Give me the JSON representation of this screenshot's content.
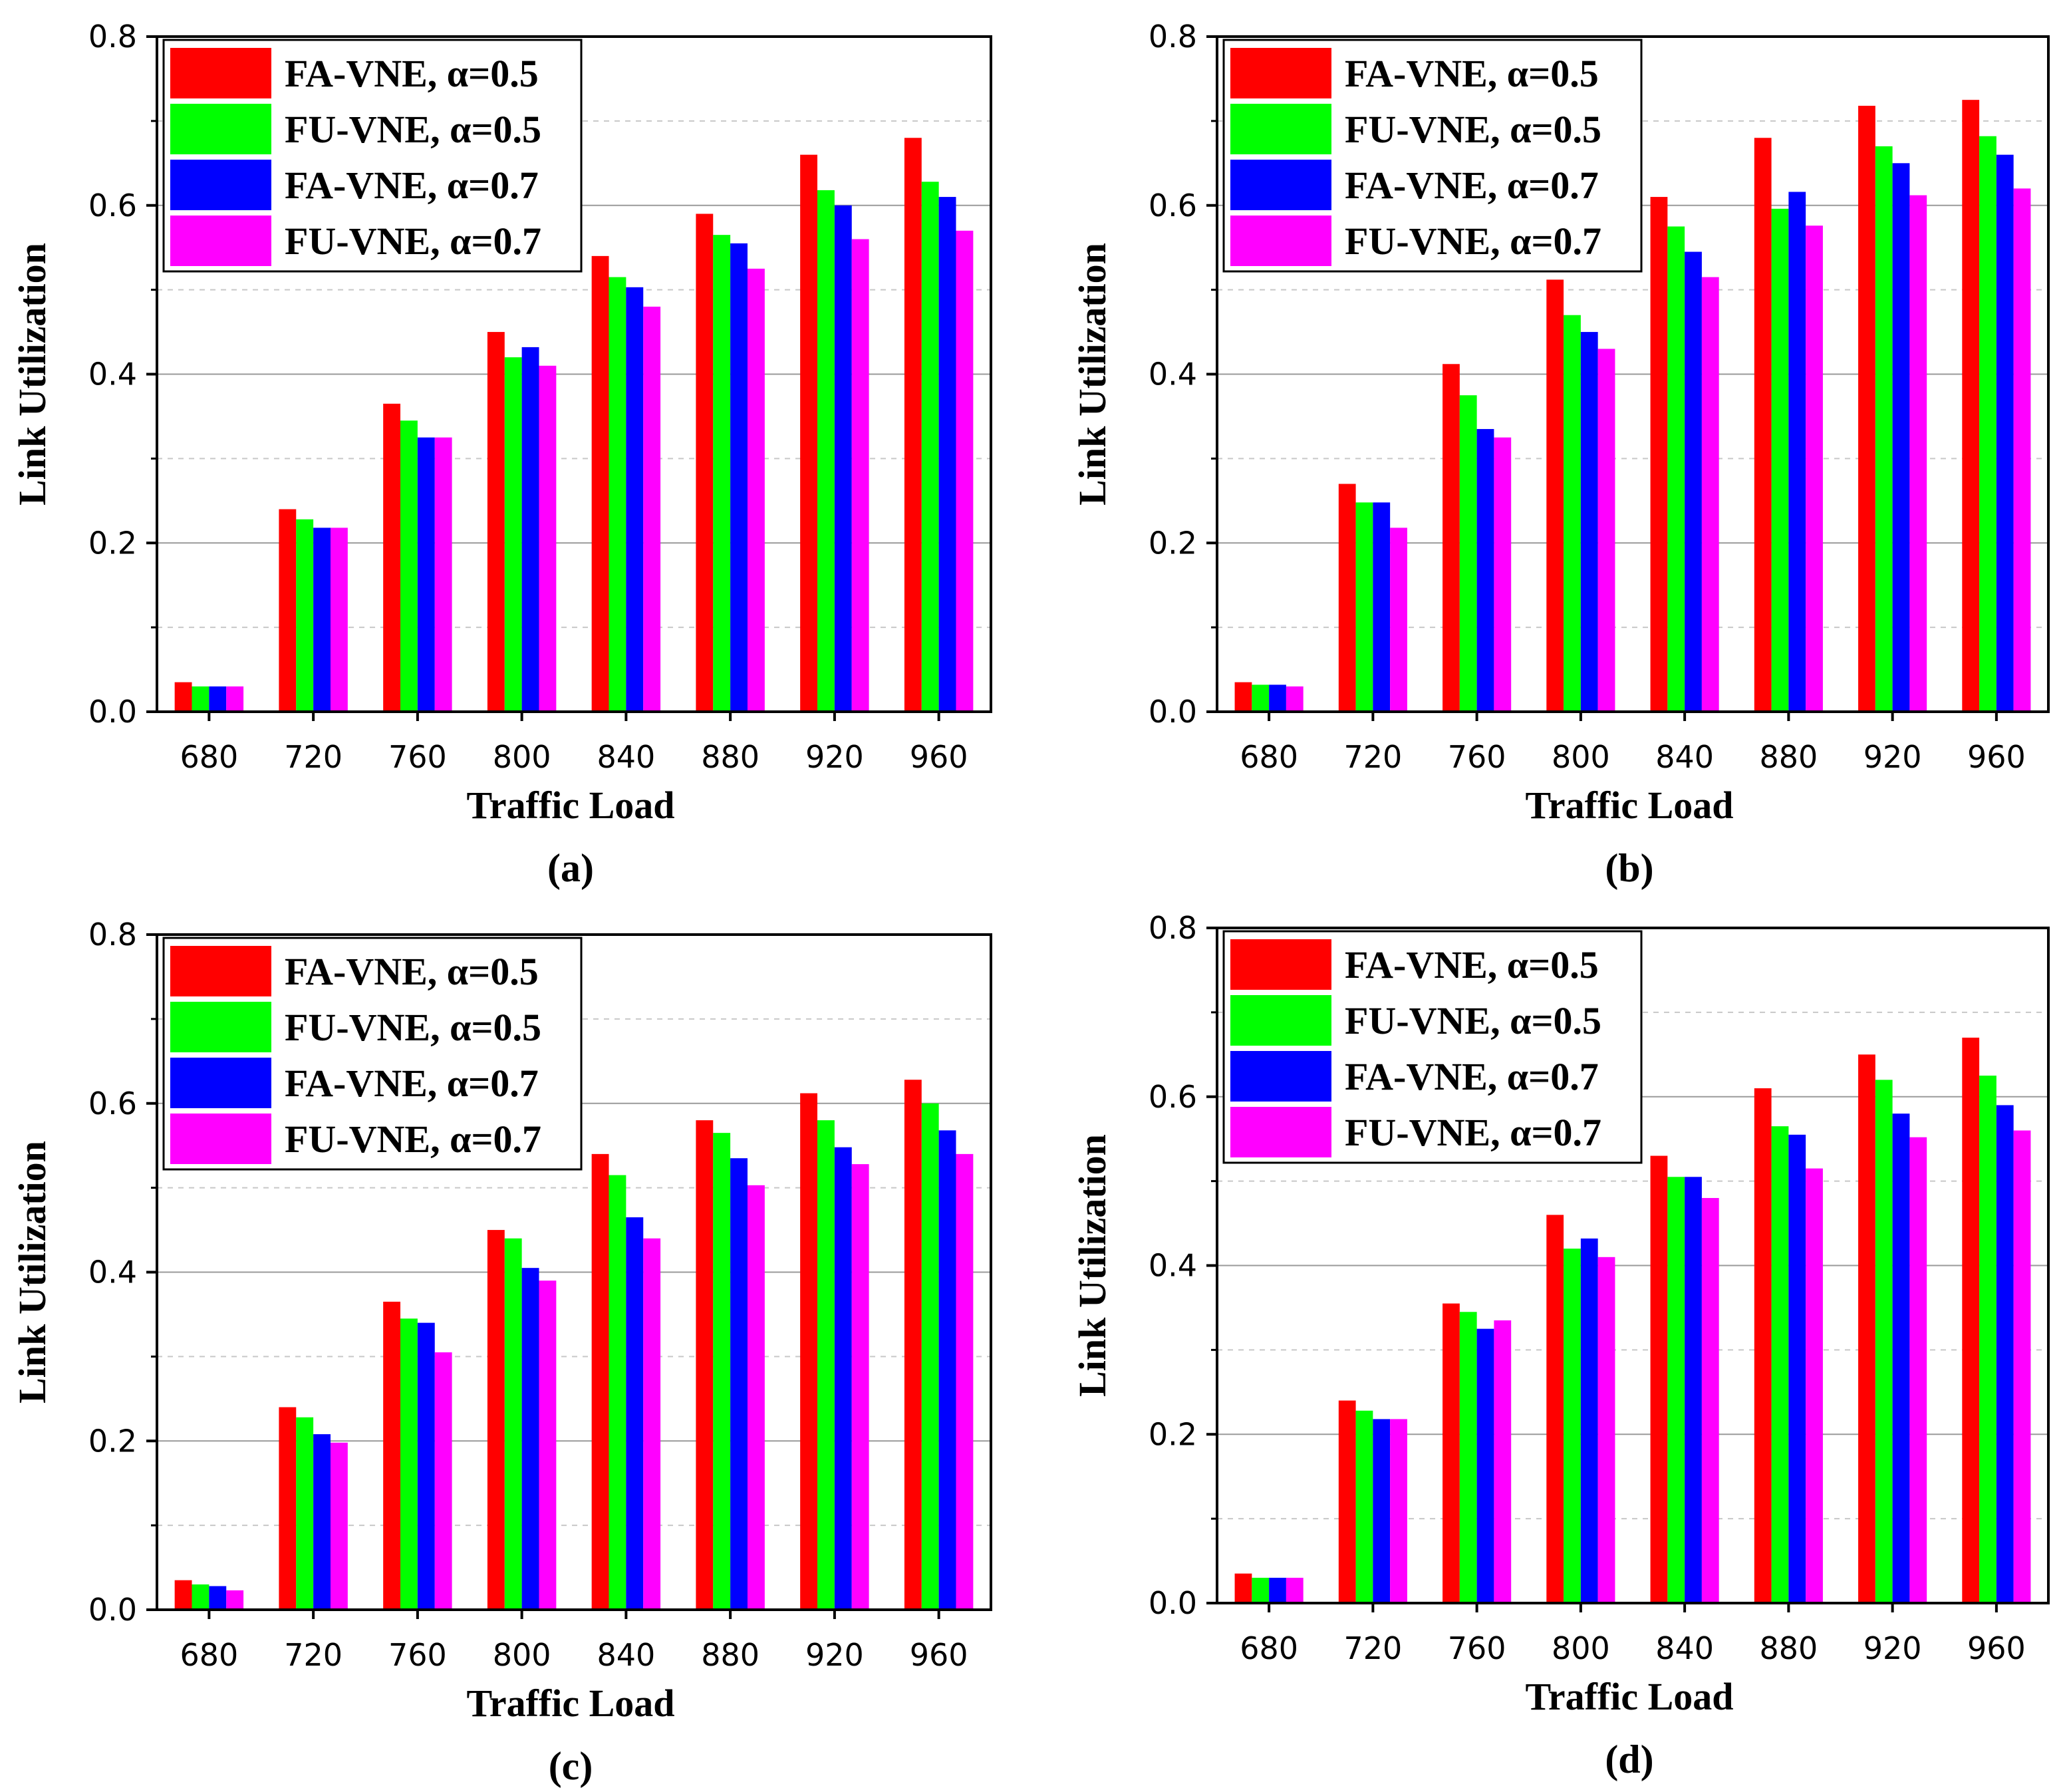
{
  "chart_data": [
    {
      "type": "bar",
      "panel_label": "(a)",
      "xlabel": "Traffic Load",
      "ylabel": "Link Utilization",
      "ylim": [
        0,
        0.8
      ],
      "yticks": [
        "0.0",
        "0.2",
        "0.4",
        "0.6",
        "0.8"
      ],
      "categories": [
        "680",
        "720",
        "760",
        "800",
        "840",
        "880",
        "920",
        "960"
      ],
      "legend_position": "top-left",
      "grid": "dashed horizontal",
      "series": [
        {
          "name": "FA-VNE, α=0.5",
          "color": "#ff0000",
          "values": [
            0.035,
            0.24,
            0.365,
            0.45,
            0.54,
            0.59,
            0.66,
            0.68
          ]
        },
        {
          "name": "FU-VNE, α=0.5",
          "color": "#00ff00",
          "values": [
            0.03,
            0.228,
            0.345,
            0.42,
            0.515,
            0.565,
            0.618,
            0.628
          ]
        },
        {
          "name": "FA-VNE, α=0.7",
          "color": "#0000ff",
          "values": [
            0.03,
            0.218,
            0.325,
            0.432,
            0.503,
            0.555,
            0.6,
            0.61
          ]
        },
        {
          "name": "FU-VNE, α=0.7",
          "color": "#ff00ff",
          "values": [
            0.03,
            0.218,
            0.325,
            0.41,
            0.48,
            0.525,
            0.56,
            0.57
          ]
        }
      ]
    },
    {
      "type": "bar",
      "panel_label": "(b)",
      "xlabel": "Traffic Load",
      "ylabel": "Link Utilization",
      "ylim": [
        0,
        0.8
      ],
      "yticks": [
        "0.0",
        "0.2",
        "0.4",
        "0.6",
        "0.8"
      ],
      "categories": [
        "680",
        "720",
        "760",
        "800",
        "840",
        "880",
        "920",
        "960"
      ],
      "legend_position": "top-left",
      "grid": "dashed horizontal",
      "series": [
        {
          "name": "FA-VNE, α=0.5",
          "color": "#ff0000",
          "values": [
            0.035,
            0.27,
            0.412,
            0.512,
            0.61,
            0.68,
            0.718,
            0.725
          ]
        },
        {
          "name": "FU-VNE, α=0.5",
          "color": "#00ff00",
          "values": [
            0.032,
            0.248,
            0.375,
            0.47,
            0.575,
            0.596,
            0.67,
            0.682
          ]
        },
        {
          "name": "FA-VNE, α=0.7",
          "color": "#0000ff",
          "values": [
            0.032,
            0.248,
            0.335,
            0.45,
            0.545,
            0.616,
            0.65,
            0.66
          ]
        },
        {
          "name": "FU-VNE, α=0.7",
          "color": "#ff00ff",
          "values": [
            0.03,
            0.218,
            0.325,
            0.43,
            0.515,
            0.576,
            0.612,
            0.62
          ]
        }
      ]
    },
    {
      "type": "bar",
      "panel_label": "(c)",
      "xlabel": "Traffic Load",
      "ylabel": "Link Utilization",
      "ylim": [
        0,
        0.8
      ],
      "yticks": [
        "0.0",
        "0.2",
        "0.4",
        "0.6",
        "0.8"
      ],
      "categories": [
        "680",
        "720",
        "760",
        "800",
        "840",
        "880",
        "920",
        "960"
      ],
      "legend_position": "top-left",
      "grid": "dashed horizontal",
      "series": [
        {
          "name": "FA-VNE, α=0.5",
          "color": "#ff0000",
          "values": [
            0.035,
            0.24,
            0.365,
            0.45,
            0.54,
            0.58,
            0.612,
            0.628
          ]
        },
        {
          "name": "FU-VNE, α=0.5",
          "color": "#00ff00",
          "values": [
            0.03,
            0.228,
            0.345,
            0.44,
            0.515,
            0.565,
            0.58,
            0.6
          ]
        },
        {
          "name": "FA-VNE, α=0.7",
          "color": "#0000ff",
          "values": [
            0.028,
            0.208,
            0.34,
            0.405,
            0.465,
            0.535,
            0.548,
            0.568
          ]
        },
        {
          "name": "FU-VNE, α=0.7",
          "color": "#ff00ff",
          "values": [
            0.023,
            0.198,
            0.305,
            0.39,
            0.44,
            0.503,
            0.528,
            0.54
          ]
        }
      ]
    },
    {
      "type": "bar",
      "panel_label": "(d)",
      "xlabel": "Traffic Load",
      "ylabel": "Link Utilization",
      "ylim": [
        0,
        0.8
      ],
      "yticks": [
        "0.0",
        "0.2",
        "0.4",
        "0.6",
        "0.8"
      ],
      "categories": [
        "680",
        "720",
        "760",
        "800",
        "840",
        "880",
        "920",
        "960"
      ],
      "legend_position": "top-left",
      "grid": "dashed horizontal",
      "series": [
        {
          "name": "FA-VNE, α=0.5",
          "color": "#ff0000",
          "values": [
            0.035,
            0.24,
            0.355,
            0.46,
            0.53,
            0.61,
            0.65,
            0.67
          ]
        },
        {
          "name": "FU-VNE, α=0.5",
          "color": "#00ff00",
          "values": [
            0.03,
            0.228,
            0.345,
            0.42,
            0.505,
            0.565,
            0.62,
            0.625
          ]
        },
        {
          "name": "FA-VNE, α=0.7",
          "color": "#0000ff",
          "values": [
            0.03,
            0.218,
            0.325,
            0.432,
            0.505,
            0.555,
            0.58,
            0.59
          ]
        },
        {
          "name": "FU-VNE, α=0.7",
          "color": "#ff00ff",
          "values": [
            0.03,
            0.218,
            0.335,
            0.41,
            0.48,
            0.515,
            0.552,
            0.56
          ]
        }
      ]
    }
  ]
}
